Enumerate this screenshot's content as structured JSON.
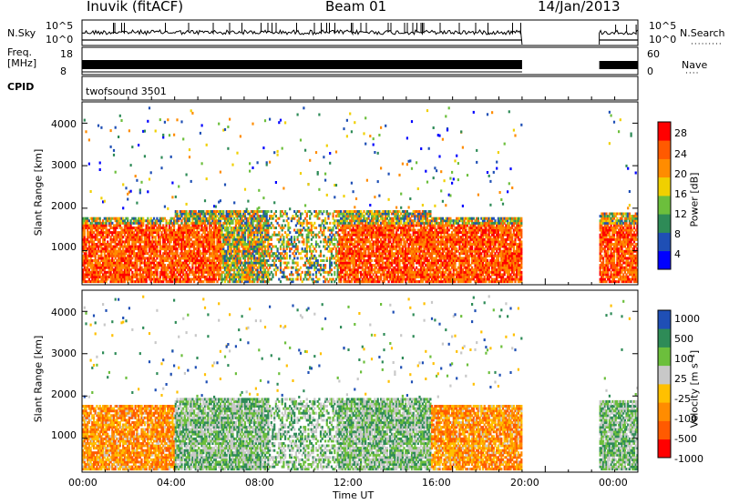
{
  "header": {
    "station": "Inuvik (fitACF)",
    "beam": "Beam 01",
    "date": "14/Jan/2013"
  },
  "top_panels": {
    "nsky_label": "N.Sky",
    "nsky_ticks": [
      "10^5",
      "10^0"
    ],
    "nsearch_label": "N.Search",
    "nsearch_ticks": [
      "10^5",
      "10^0"
    ],
    "freq_label_1": "Freq.",
    "freq_label_2": "[MHz]",
    "freq_ticks": [
      "18",
      "8"
    ],
    "nave_label": "Nave",
    "nave_ticks": [
      "60",
      "0"
    ],
    "cpid_label": "CPID",
    "cpid_value": "twofsound 3501"
  },
  "colors": {
    "power": [
      "#0000ff",
      "#1f4fb5",
      "#2e8b57",
      "#6cbf3c",
      "#f0d000",
      "#ff8c00",
      "#ff5a00",
      "#ff0000"
    ],
    "velocity": [
      "#ff0000",
      "#ff5a00",
      "#ff8c00",
      "#ffc000",
      "#c8c8c8",
      "#6cbf3c",
      "#2e8b57",
      "#1f4fb5"
    ],
    "grey": "#c8c8c8"
  },
  "chart_data": [
    {
      "type": "heatmap",
      "ylabel": "Slant Range [km]",
      "yticks": [
        "1000",
        "2000",
        "3000",
        "4000"
      ],
      "ylim": [
        200,
        4500
      ],
      "xlim": [
        "00:00",
        "24:00"
      ],
      "colorbar_label": "Power [dB]",
      "colorbar_ticks": [
        "4",
        "8",
        "12",
        "16",
        "20",
        "24",
        "28"
      ],
      "colorbar_range": [
        0,
        32
      ],
      "data_gap": [
        "19:00",
        "22:20"
      ]
    },
    {
      "type": "heatmap",
      "ylabel": "Slant Range [km]",
      "yticks": [
        "1000",
        "2000",
        "3000",
        "4000"
      ],
      "ylim": [
        200,
        4500
      ],
      "xlim": [
        "00:00",
        "24:00"
      ],
      "colorbar_label": "Velocity [m s⁻¹]",
      "colorbar_ticks": [
        "-1000",
        "-500",
        "-100",
        "-25",
        "25",
        "100",
        "500",
        "1000"
      ],
      "data_gap": [
        "19:00",
        "22:20"
      ]
    }
  ],
  "time_axis": {
    "ticks": [
      "00:00",
      "04:00",
      "08:00",
      "12:00",
      "16:00",
      "20:00",
      "00:00"
    ],
    "label": "Time UT"
  }
}
